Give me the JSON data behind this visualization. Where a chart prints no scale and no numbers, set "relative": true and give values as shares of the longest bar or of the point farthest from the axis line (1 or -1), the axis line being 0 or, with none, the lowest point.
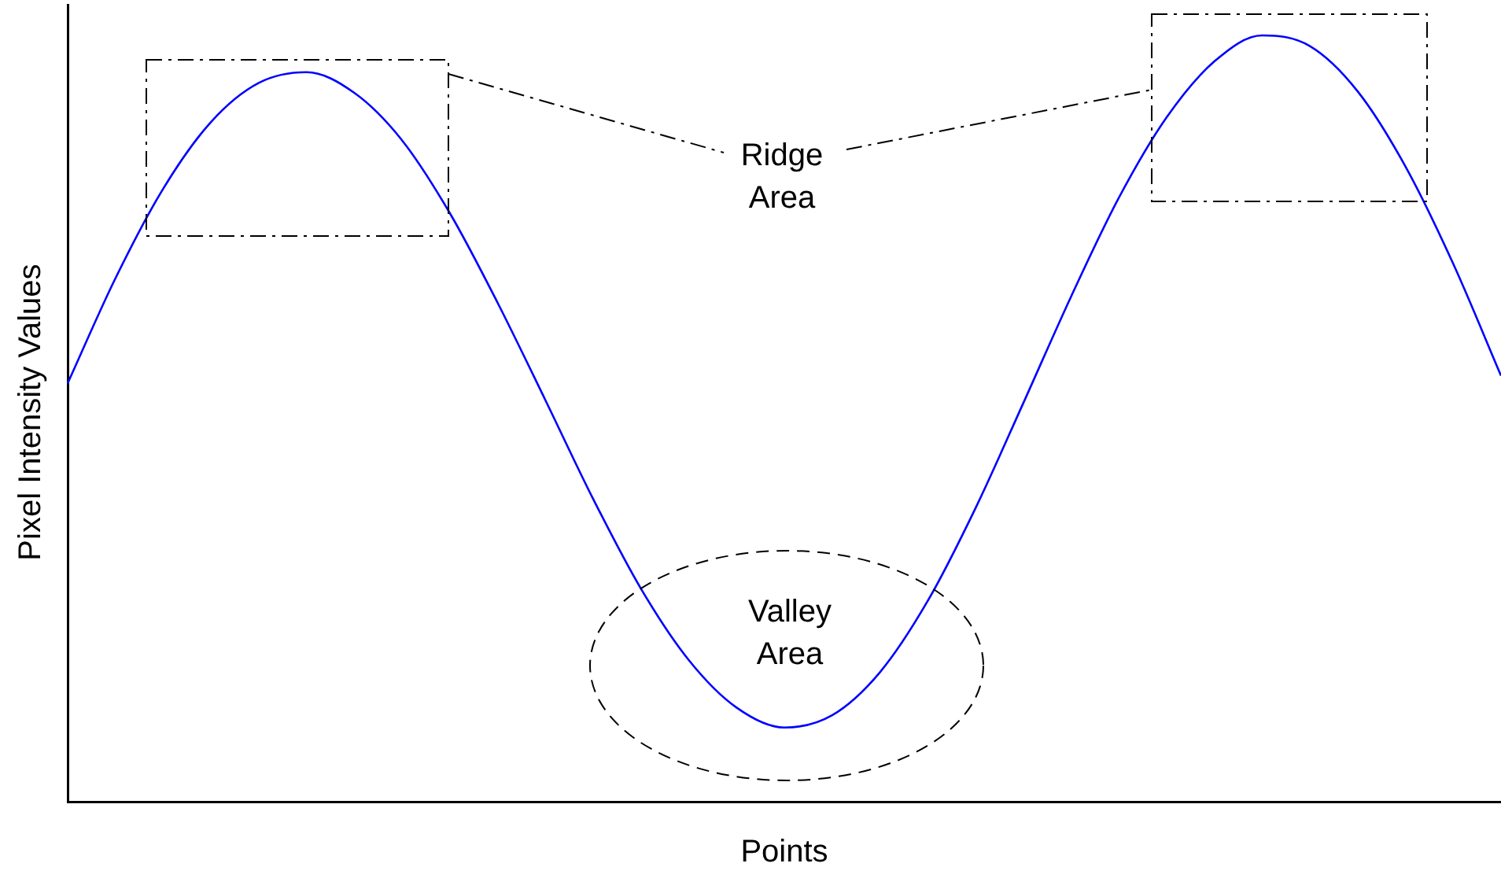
{
  "chart_data": {
    "type": "line",
    "xlabel": "Points",
    "ylabel": "Pixel Intensity Values",
    "relative": true,
    "grid": false,
    "legend": false,
    "marker": "none",
    "line_style": "solid",
    "categories": [
      null,
      null,
      null,
      null,
      null,
      null,
      null,
      null,
      null,
      null,
      null,
      null,
      null,
      null,
      null,
      null,
      null,
      null,
      null,
      null,
      null,
      null,
      null,
      null,
      null,
      null,
      null,
      null,
      null,
      null,
      null
    ],
    "series": [
      {
        "color": "#0000ff",
        "values": [
          0.546,
          0.683,
          0.8,
          0.887,
          0.938,
          0.952,
          0.925,
          0.863,
          0.768,
          0.651,
          0.524,
          0.395,
          0.278,
          0.185,
          0.123,
          0.097,
          0.113,
          0.169,
          0.262,
          0.383,
          0.52,
          0.659,
          0.788,
          0.893,
          0.966,
          1,
          0.986,
          0.927,
          0.829,
          0.702,
          0.556
        ]
      }
    ],
    "annotations": [
      "Ridge Area",
      "Valley Area"
    ]
  }
}
